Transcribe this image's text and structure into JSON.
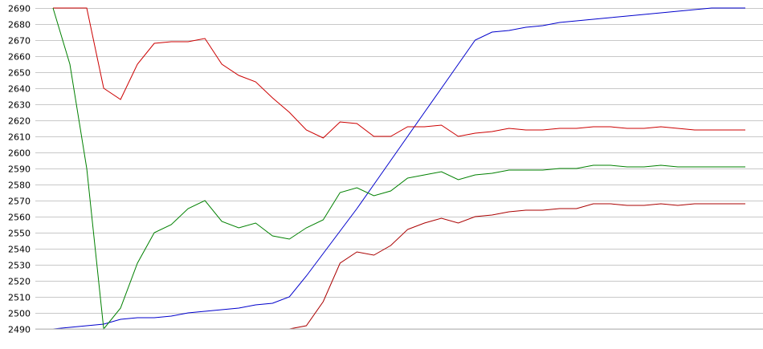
{
  "chart_data": {
    "type": "line",
    "title": "",
    "xlabel": "",
    "ylabel": "",
    "ylim": [
      2490,
      2690
    ],
    "yticks": [
      2490,
      2500,
      2510,
      2520,
      2530,
      2540,
      2550,
      2560,
      2570,
      2580,
      2590,
      2600,
      2610,
      2620,
      2630,
      2640,
      2650,
      2660,
      2670,
      2680,
      2690
    ],
    "grid": true,
    "legend": "none",
    "x": [
      1,
      2,
      3,
      4,
      5,
      6,
      7,
      8,
      9,
      10,
      11,
      12,
      13,
      14,
      15,
      16,
      17,
      18,
      19,
      20,
      21,
      22,
      23,
      24,
      25,
      26,
      27,
      28,
      29,
      30,
      31,
      32,
      33,
      34,
      35,
      36,
      37,
      38,
      39,
      40,
      41,
      42
    ],
    "series": [
      {
        "color": "#0000cc",
        "values": [
          2490,
          2491,
          2492,
          2493,
          2496,
          2497,
          2497,
          2498,
          2500,
          2501,
          2502,
          2503,
          2505,
          2506,
          2510,
          2523,
          2537,
          2551,
          2565,
          2580,
          2595,
          2610,
          2625,
          2640,
          2655,
          2670,
          2675,
          2676,
          2678,
          2679,
          2681,
          2682,
          2683,
          2684,
          2685,
          2686,
          2687,
          2688,
          2689,
          2690,
          2690,
          2690
        ]
      },
      {
        "color": "#cc0000",
        "values": [
          2690,
          2690,
          2690,
          2640,
          2633,
          2655,
          2668,
          2669,
          2669,
          2671,
          2655,
          2648,
          2644,
          2634,
          2625,
          2614,
          2609,
          2619,
          2618,
          2610,
          2610,
          2616,
          2616,
          2617,
          2610,
          2612,
          2613,
          2615,
          2614,
          2614,
          2615,
          2615,
          2616,
          2616,
          2615,
          2615,
          2616,
          2615,
          2614,
          2614,
          2614,
          2614
        ]
      },
      {
        "color": "#008000",
        "values": [
          2690,
          2655,
          2590,
          2490,
          2503,
          2531,
          2550,
          2555,
          2565,
          2570,
          2557,
          2553,
          2556,
          2548,
          2546,
          2553,
          2558,
          2575,
          2578,
          2573,
          2576,
          2584,
          2586,
          2588,
          2583,
          2586,
          2587,
          2589,
          2589,
          2589,
          2590,
          2590,
          2592,
          2592,
          2591,
          2591,
          2592,
          2591,
          2591,
          2591,
          2591,
          2591
        ]
      },
      {
        "color": "#aa0000",
        "values": [
          2490,
          2490,
          2490,
          2490,
          2490,
          2490,
          2490,
          2490,
          2490,
          2490,
          2490,
          2490,
          2490,
          2490,
          2490,
          2492,
          2507,
          2531,
          2538,
          2536,
          2542,
          2552,
          2556,
          2559,
          2556,
          2560,
          2561,
          2563,
          2564,
          2564,
          2565,
          2565,
          2568,
          2568,
          2567,
          2567,
          2568,
          2567,
          2568,
          2568,
          2568,
          2568
        ]
      }
    ]
  }
}
